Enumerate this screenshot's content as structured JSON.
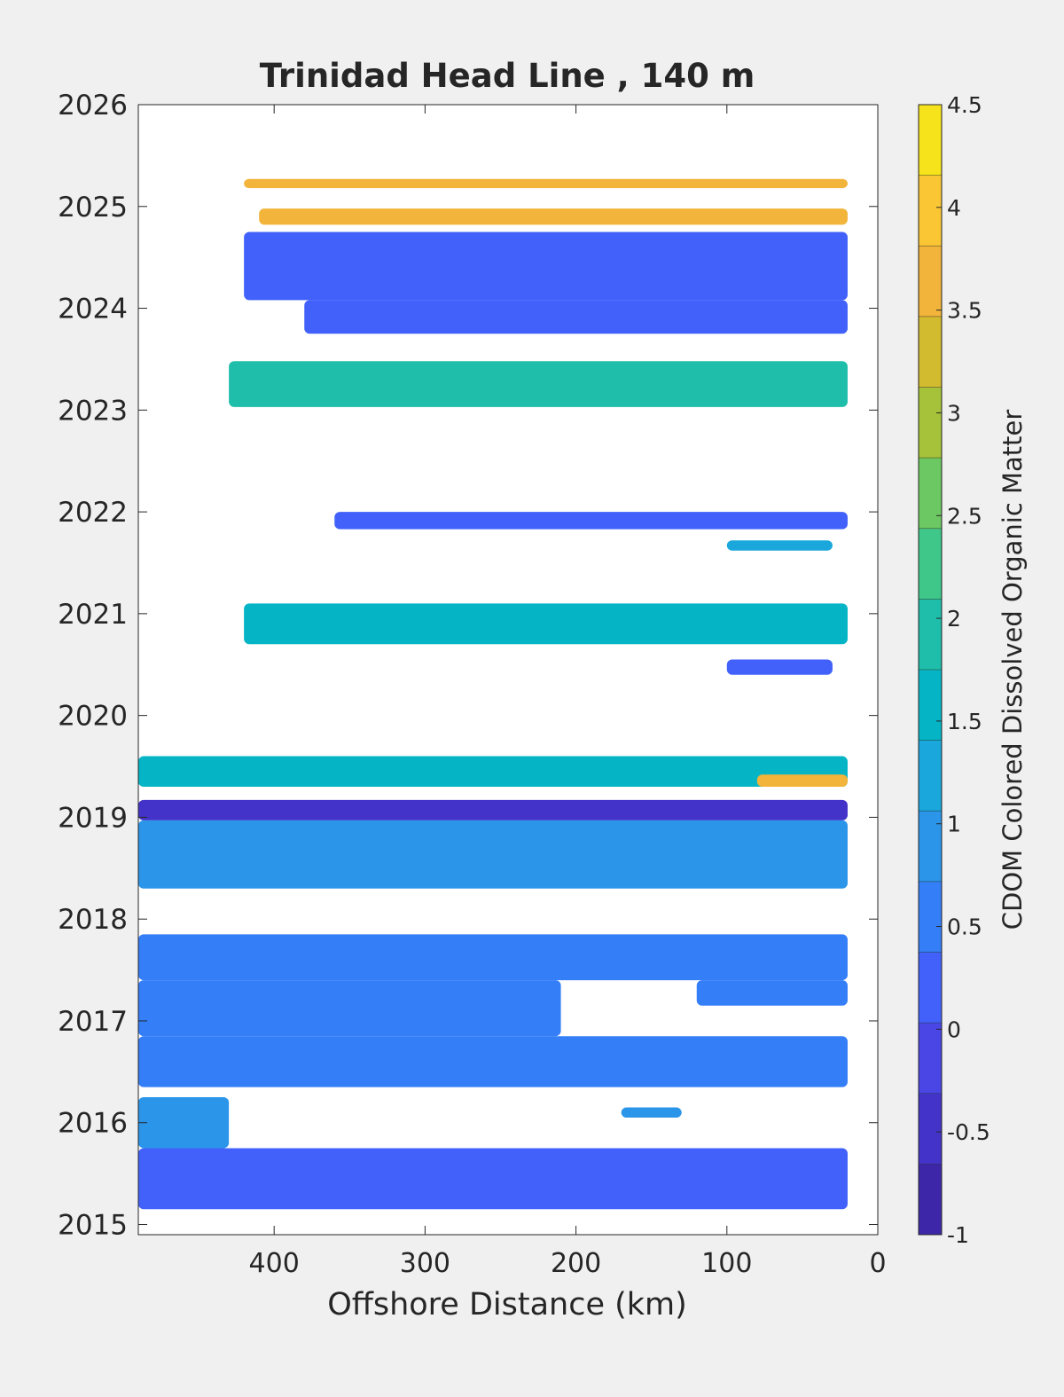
{
  "chart_data": {
    "type": "heatmap",
    "title": "Trinidad Head Line , 140 m",
    "xlabel": "Offshore Distance (km)",
    "ylabel": "",
    "xlim": [
      490,
      0
    ],
    "x_reversed": true,
    "ylim": [
      2014.9,
      2026
    ],
    "x_ticks": [
      400,
      300,
      200,
      100,
      0
    ],
    "y_ticks": [
      2015,
      2016,
      2017,
      2018,
      2019,
      2020,
      2021,
      2022,
      2023,
      2024,
      2025,
      2026
    ],
    "grid": false,
    "colorbar": {
      "label": "CDOM Colored Dissolved Organic Matter",
      "range": [
        -1,
        4.5
      ],
      "ticks": [
        -1,
        -0.5,
        0,
        0.5,
        1,
        1.5,
        2,
        2.5,
        3,
        3.5,
        4,
        4.5
      ],
      "levels": [
        "#3e26a8",
        "#4433c8",
        "#4a46e6",
        "#4161fa",
        "#347ef8",
        "#2b95ea",
        "#1aa7dc",
        "#05b5c6",
        "#1ebeaa",
        "#3fc78a",
        "#6cc862",
        "#a6c23a",
        "#d2bb2e",
        "#f2b43a",
        "#fac634",
        "#f6e31c"
      ]
    },
    "bands": [
      {
        "d1": 420,
        "d2": 20,
        "t1": 2025.18,
        "t2": 2025.27,
        "value": 3.7
      },
      {
        "d1": 410,
        "d2": 20,
        "t1": 2024.82,
        "t2": 2024.98,
        "value": 3.8
      },
      {
        "d1": 420,
        "d2": 20,
        "t1": 2024.08,
        "t2": 2024.75,
        "value": 0.3
      },
      {
        "d1": 380,
        "d2": 20,
        "t1": 2023.75,
        "t2": 2024.08,
        "value": 0.3
      },
      {
        "d1": 430,
        "d2": 20,
        "t1": 2023.03,
        "t2": 2023.48,
        "value": 1.9
      },
      {
        "d1": 360,
        "d2": 20,
        "t1": 2021.83,
        "t2": 2022.0,
        "value": 0.1
      },
      {
        "d1": 100,
        "d2": 30,
        "t1": 2021.62,
        "t2": 2021.72,
        "value": 1.1
      },
      {
        "d1": 420,
        "d2": 20,
        "t1": 2020.7,
        "t2": 2021.1,
        "value": 1.65
      },
      {
        "d1": 100,
        "d2": 30,
        "t1": 2020.4,
        "t2": 2020.55,
        "value": 0.1
      },
      {
        "d1": 490,
        "d2": 20,
        "t1": 2019.3,
        "t2": 2019.6,
        "value": 1.7
      },
      {
        "d1": 80,
        "d2": 20,
        "t1": 2019.3,
        "t2": 2019.42,
        "value": 3.5
      },
      {
        "d1": 490,
        "d2": 20,
        "t1": 2018.97,
        "t2": 2019.17,
        "value": -0.4
      },
      {
        "d1": 490,
        "d2": 20,
        "t1": 2018.3,
        "t2": 2018.97,
        "value": 0.8
      },
      {
        "d1": 490,
        "d2": 20,
        "t1": 2017.4,
        "t2": 2017.85,
        "value": 0.4
      },
      {
        "d1": 490,
        "d2": 210,
        "t1": 2016.85,
        "t2": 2017.4,
        "value": 0.7
      },
      {
        "d1": 120,
        "d2": 20,
        "t1": 2017.15,
        "t2": 2017.4,
        "value": 0.6
      },
      {
        "d1": 490,
        "d2": 20,
        "t1": 2016.35,
        "t2": 2016.85,
        "value": 0.5
      },
      {
        "d1": 490,
        "d2": 430,
        "t1": 2015.75,
        "t2": 2016.25,
        "value": 0.8
      },
      {
        "d1": 170,
        "d2": 130,
        "t1": 2016.05,
        "t2": 2016.15,
        "value": 0.8
      },
      {
        "d1": 490,
        "d2": 20,
        "t1": 2015.15,
        "t2": 2015.75,
        "value": 0.2
      }
    ]
  }
}
